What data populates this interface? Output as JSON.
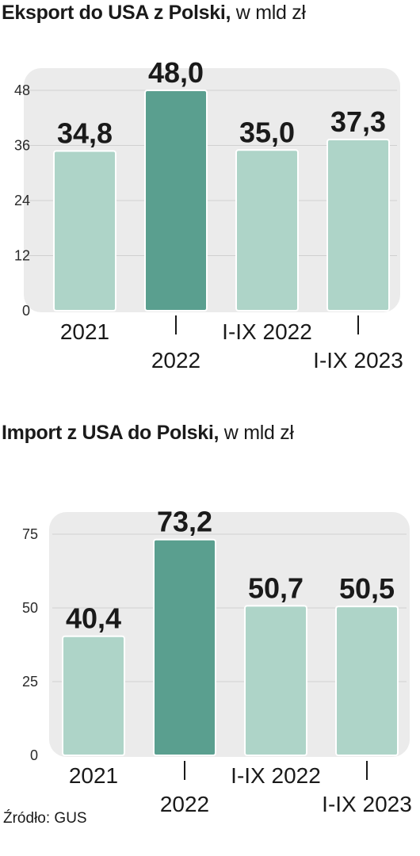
{
  "charts": [
    {
      "title_bold": "Eksport do USA z Polski,",
      "title_light": " w mld zł"
    },
    {
      "title_bold": "Import z USA do Polski,",
      "title_light": " w mld zł"
    }
  ],
  "chart_data": [
    {
      "type": "bar",
      "title": "Eksport do USA z Polski, w mld zł",
      "categories": [
        "2021",
        "2022",
        "I-IX 2022",
        "I-IX 2023"
      ],
      "values": [
        34.8,
        48.0,
        35.0,
        37.3
      ],
      "value_labels": [
        "34,8",
        "48,0",
        "35,0",
        "37,3"
      ],
      "yticks": [
        "0",
        "12",
        "24",
        "36",
        "48"
      ],
      "ylim": [
        0,
        48
      ],
      "highlight_index": 1,
      "grid": true,
      "colors": {
        "bar": "#aed4c8",
        "highlight": "#5a9f8f",
        "bar_edge": "#ffffff",
        "panel": "#ebebeb",
        "grid": "#d0d0d0"
      }
    },
    {
      "type": "bar",
      "title": "Import z USA do Polski, w mld zł",
      "categories": [
        "2021",
        "2022",
        "I-IX 2022",
        "I-IX 2023"
      ],
      "values": [
        40.4,
        73.2,
        50.7,
        50.5
      ],
      "value_labels": [
        "40,4",
        "73,2",
        "50,7",
        "50,5"
      ],
      "yticks": [
        "0",
        "25",
        "50",
        "75"
      ],
      "ylim": [
        0,
        75
      ],
      "highlight_index": 1,
      "grid": true,
      "colors": {
        "bar": "#aed4c8",
        "highlight": "#5a9f8f",
        "bar_edge": "#ffffff",
        "panel": "#ebebeb",
        "grid": "#d0d0d0"
      }
    }
  ],
  "source": "Źródło: GUS"
}
